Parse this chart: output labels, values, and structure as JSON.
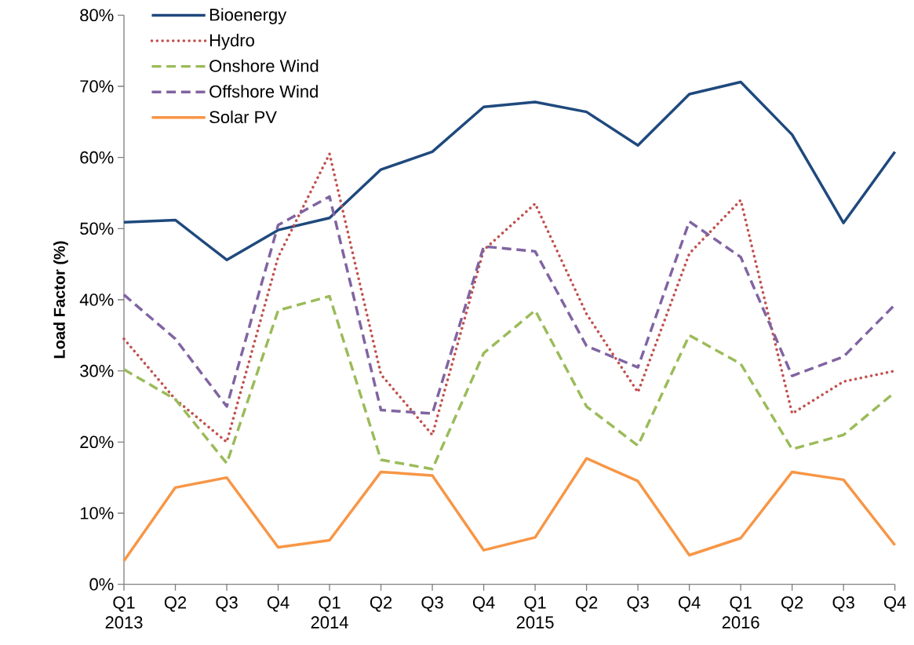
{
  "chart_data": {
    "type": "line",
    "ylabel": "Load Factor (%)",
    "categories": [
      "Q1 2013",
      "Q2",
      "Q3",
      "Q4",
      "Q1 2014",
      "Q2",
      "Q3",
      "Q4",
      "Q1 2015",
      "Q2",
      "Q3",
      "Q4",
      "Q1 2016",
      "Q2",
      "Q3",
      "Q4"
    ],
    "ylim": [
      0,
      80
    ],
    "yticks": [
      {
        "value": 0,
        "label": "0%"
      },
      {
        "value": 10,
        "label": "10%"
      },
      {
        "value": 20,
        "label": "20%"
      },
      {
        "value": 30,
        "label": "30%"
      },
      {
        "value": 40,
        "label": "40%"
      },
      {
        "value": 50,
        "label": "50%"
      },
      {
        "value": 60,
        "label": "60%"
      },
      {
        "value": 70,
        "label": "70%"
      },
      {
        "value": 80,
        "label": "80%"
      }
    ],
    "grid": false,
    "legend": "top left",
    "marker": "none",
    "series": [
      {
        "name": "Bioenergy",
        "color": "#1f497d",
        "line_style": "solid",
        "values": [
          50.9,
          51.2,
          45.6,
          49.8,
          51.5,
          58.3,
          60.8,
          67.1,
          67.8,
          66.4,
          61.7,
          68.9,
          70.6,
          63.2,
          50.8,
          60.8
        ]
      },
      {
        "name": "Hydro",
        "color": "#c0504d",
        "line_style": "dotted",
        "values": [
          34.5,
          26,
          20,
          46,
          60.5,
          29.5,
          21,
          47,
          53.5,
          38,
          27,
          46.5,
          54,
          24,
          28.5,
          30
        ]
      },
      {
        "name": "Onshore Wind",
        "color": "#9bbb59",
        "line_style": "dashed",
        "values": [
          30.2,
          26,
          17,
          38.5,
          40.5,
          17.5,
          16.2,
          32.5,
          38.5,
          25,
          19.5,
          35,
          31,
          19,
          21,
          27
        ]
      },
      {
        "name": "Offshore Wind",
        "color": "#8064a2",
        "line_style": "dashed",
        "values": [
          40.7,
          34.5,
          25,
          50.5,
          54.5,
          24.5,
          24,
          47.5,
          46.8,
          33.5,
          30.5,
          51,
          46,
          29.3,
          32,
          39.3
        ]
      },
      {
        "name": "Solar PV",
        "color": "#f79646",
        "line_style": "solid",
        "values": [
          3.3,
          13.6,
          15,
          5.2,
          6.2,
          15.8,
          15.3,
          4.8,
          6.6,
          17.7,
          14.5,
          4.1,
          6.5,
          15.8,
          14.7,
          5.5
        ]
      }
    ]
  }
}
